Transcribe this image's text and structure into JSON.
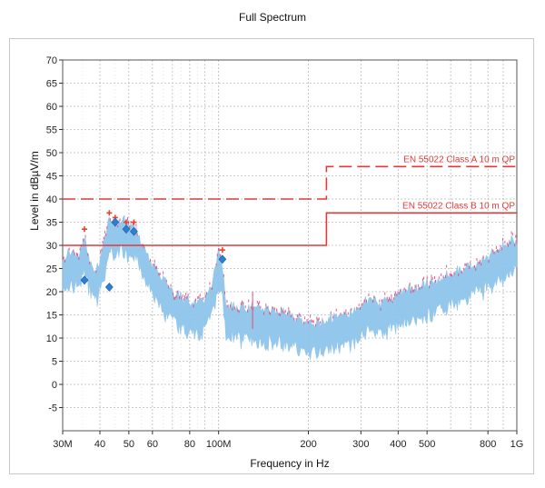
{
  "chart_data": {
    "type": "line",
    "title": "Full Spectrum",
    "xlabel": "Frequency in Hz",
    "ylabel": "Level in dBµV/m",
    "x_scale": "log",
    "xlim_hz": [
      30000000,
      1000000000
    ],
    "ylim": [
      -10,
      70
    ],
    "grid": true,
    "x_ticks": [
      {
        "label": "30M",
        "hz": 30000000
      },
      {
        "label": "40",
        "hz": 40000000
      },
      {
        "label": "50",
        "hz": 50000000
      },
      {
        "label": "60",
        "hz": 60000000
      },
      {
        "label": "80",
        "hz": 80000000
      },
      {
        "label": "100M",
        "hz": 100000000
      },
      {
        "label": "200",
        "hz": 200000000
      },
      {
        "label": "300",
        "hz": 300000000
      },
      {
        "label": "400",
        "hz": 400000000
      },
      {
        "label": "500",
        "hz": 500000000
      },
      {
        "label": "800",
        "hz": 800000000
      },
      {
        "label": "1G",
        "hz": 1000000000
      }
    ],
    "y_ticks": [
      {
        "label": "70",
        "v": 70
      },
      {
        "label": "65",
        "v": 65
      },
      {
        "label": "60",
        "v": 60
      },
      {
        "label": "55",
        "v": 55
      },
      {
        "label": "50",
        "v": 50
      },
      {
        "label": "45",
        "v": 45
      },
      {
        "label": "40",
        "v": 40
      },
      {
        "label": "35",
        "v": 35
      },
      {
        "label": "30",
        "v": 30
      },
      {
        "label": "25",
        "v": 25
      },
      {
        "label": "20",
        "v": 20
      },
      {
        "label": "15",
        "v": 15
      },
      {
        "label": "10",
        "v": 10
      },
      {
        "label": "5",
        "v": 5
      },
      {
        "label": "0",
        "v": 0
      },
      {
        "label": "-5",
        "v": -5
      }
    ],
    "limits": [
      {
        "name": "EN 55022 Class A 10 m QP",
        "style": "dashed",
        "color": "#e03a3a",
        "points": [
          [
            30000000,
            40
          ],
          [
            230000000,
            40
          ],
          [
            230000000,
            47
          ],
          [
            1000000000,
            47
          ]
        ]
      },
      {
        "name": "EN 55022 Class B 10 m QP",
        "style": "solid",
        "color": "#e03a3a",
        "points": [
          [
            30000000,
            30
          ],
          [
            230000000,
            30
          ],
          [
            230000000,
            37
          ],
          [
            1000000000,
            37
          ]
        ]
      }
    ],
    "spectrum": {
      "color": "#8ec5ea",
      "peak_color": "#e64a7a",
      "points": [
        [
          30000000,
          24
        ],
        [
          32000000,
          26
        ],
        [
          34000000,
          25
        ],
        [
          35500000,
          29
        ],
        [
          37000000,
          24
        ],
        [
          39000000,
          22
        ],
        [
          41000000,
          27
        ],
        [
          43000000,
          33
        ],
        [
          45000000,
          32
        ],
        [
          47000000,
          33
        ],
        [
          50000000,
          32
        ],
        [
          53000000,
          31
        ],
        [
          55000000,
          28
        ],
        [
          58000000,
          25
        ],
        [
          62000000,
          22
        ],
        [
          67000000,
          19
        ],
        [
          72000000,
          17
        ],
        [
          80000000,
          15
        ],
        [
          88000000,
          15
        ],
        [
          95000000,
          19
        ],
        [
          100000000,
          26
        ],
        [
          103000000,
          23
        ],
        [
          106000000,
          14
        ],
        [
          120000000,
          14
        ],
        [
          140000000,
          13.5
        ],
        [
          160000000,
          13
        ],
        [
          180000000,
          12
        ],
        [
          210000000,
          10.5
        ],
        [
          250000000,
          12
        ],
        [
          290000000,
          13.5
        ],
        [
          320000000,
          16
        ],
        [
          350000000,
          15
        ],
        [
          400000000,
          17
        ],
        [
          500000000,
          19
        ],
        [
          600000000,
          21
        ],
        [
          700000000,
          23
        ],
        [
          800000000,
          25
        ],
        [
          900000000,
          27
        ],
        [
          1000000000,
          29
        ]
      ]
    },
    "markers": [
      {
        "hz": 35500000,
        "peak": 33.5,
        "qp": 22.5
      },
      {
        "hz": 43000000,
        "peak": 37,
        "qp": 21
      },
      {
        "hz": 45000000,
        "peak": 36,
        "qp": 35
      },
      {
        "hz": 49000000,
        "peak": 35,
        "qp": 33.5
      },
      {
        "hz": 52000000,
        "peak": 35,
        "qp": 33
      },
      {
        "hz": 103000000,
        "peak": 29,
        "qp": 27
      }
    ]
  }
}
